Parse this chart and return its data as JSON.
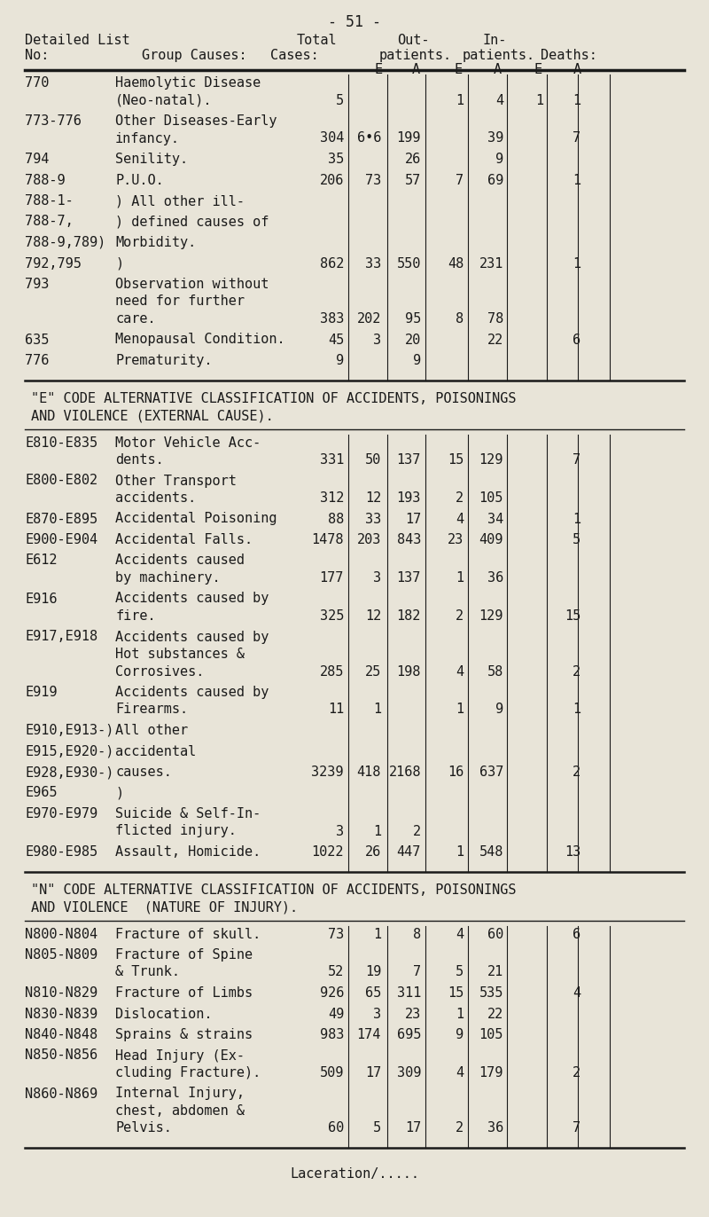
{
  "bg_color": "#e8e4d8",
  "text_color": "#1a1a1a",
  "sections": [
    {
      "type": "data",
      "rows": [
        {
          "code": "770",
          "desc_lines": [
            "Haemolytic Disease",
            "(Neo-natal)."
          ],
          "total": "5",
          "out_e": "",
          "out_a": "",
          "in_e": "1",
          "in_a": "4",
          "d_e": "1",
          "d_a": "1"
        },
        {
          "code": "773-776",
          "desc_lines": [
            "Other Diseases-Early",
            "infancy."
          ],
          "total": "304",
          "out_e": "6•6",
          "out_a": "199",
          "in_e": "",
          "in_a": "39",
          "d_e": "",
          "d_a": "7"
        },
        {
          "code": "794",
          "desc_lines": [
            "Senility."
          ],
          "total": "35",
          "out_e": "",
          "out_a": "26",
          "in_e": "",
          "in_a": "9",
          "d_e": "",
          "d_a": ""
        },
        {
          "code": "788-9",
          "desc_lines": [
            "P.U.O."
          ],
          "total": "206",
          "out_e": "73",
          "out_a": "57",
          "in_e": "7",
          "in_a": "69",
          "d_e": "",
          "d_a": "1"
        },
        {
          "code": "788-1-",
          "desc_lines": [
            ") All other ill-"
          ],
          "total": "",
          "out_e": "",
          "out_a": "",
          "in_e": "",
          "in_a": "",
          "d_e": "",
          "d_a": ""
        },
        {
          "code": "788-7,",
          "desc_lines": [
            ") defined causes of"
          ],
          "total": "",
          "out_e": "",
          "out_a": "",
          "in_e": "",
          "in_a": "",
          "d_e": "",
          "d_a": ""
        },
        {
          "code": "788-9,789)",
          "desc_lines": [
            "Morbidity."
          ],
          "total": "",
          "out_e": "",
          "out_a": "",
          "in_e": "",
          "in_a": "",
          "d_e": "",
          "d_a": ""
        },
        {
          "code": "792,795",
          "desc_lines": [
            ")"
          ],
          "total": "862",
          "out_e": "33",
          "out_a": "550",
          "in_e": "48",
          "in_a": "231",
          "d_e": "",
          "d_a": "1"
        },
        {
          "code": "793",
          "desc_lines": [
            "Observation without",
            "need for further",
            "care."
          ],
          "total": "383",
          "out_e": "202",
          "out_a": "95",
          "in_e": "8",
          "in_a": "78",
          "d_e": "",
          "d_a": ""
        },
        {
          "code": "635",
          "desc_lines": [
            "Menopausal Condition."
          ],
          "total": "45",
          "out_e": "3",
          "out_a": "20",
          "in_e": "",
          "in_a": "22",
          "d_e": "",
          "d_a": "6"
        },
        {
          "code": "776",
          "desc_lines": [
            "Prematurity."
          ],
          "total": "9",
          "out_e": "",
          "out_a": "9",
          "in_e": "",
          "in_a": "",
          "d_e": "",
          "d_a": ""
        }
      ]
    },
    {
      "type": "section_header",
      "lines": [
        "\"E\" CODE ALTERNATIVE CLASSIFICATION OF ACCIDENTS, POISONINGS",
        "AND VIOLENCE (EXTERNAL CAUSE)."
      ]
    },
    {
      "type": "data",
      "rows": [
        {
          "code": "E810-E835",
          "desc_lines": [
            "Motor Vehicle Acc-",
            "dents."
          ],
          "total": "331",
          "out_e": "50",
          "out_a": "137",
          "in_e": "15",
          "in_a": "129",
          "d_e": "",
          "d_a": "7"
        },
        {
          "code": "E800-E802",
          "desc_lines": [
            "Other Transport",
            "accidents."
          ],
          "total": "312",
          "out_e": "12",
          "out_a": "193",
          "in_e": "2",
          "in_a": "105",
          "d_e": "",
          "d_a": ""
        },
        {
          "code": "E870-E895",
          "desc_lines": [
            "Accidental Poisoning"
          ],
          "total": "88",
          "out_e": "33",
          "out_a": "17",
          "in_e": "4",
          "in_a": "34",
          "d_e": "",
          "d_a": "1"
        },
        {
          "code": "E900-E904",
          "desc_lines": [
            "Accidental Falls."
          ],
          "total": "1478",
          "out_e": "203",
          "out_a": "843",
          "in_e": "23",
          "in_a": "409",
          "d_e": "",
          "d_a": "5"
        },
        {
          "code": "E612",
          "desc_lines": [
            "Accidents caused",
            "by machinery."
          ],
          "total": "177",
          "out_e": "3",
          "out_a": "137",
          "in_e": "1",
          "in_a": "36",
          "d_e": "",
          "d_a": ""
        },
        {
          "code": "E916",
          "desc_lines": [
            "Accidents caused by",
            "fire."
          ],
          "total": "325",
          "out_e": "12",
          "out_a": "182",
          "in_e": "2",
          "in_a": "129",
          "d_e": "",
          "d_a": "15"
        },
        {
          "code": "E917,E918",
          "desc_lines": [
            "Accidents caused by",
            "Hot substances &",
            "Corrosives."
          ],
          "total": "285",
          "out_e": "25",
          "out_a": "198",
          "in_e": "4",
          "in_a": "58",
          "d_e": "",
          "d_a": "2"
        },
        {
          "code": "E919",
          "desc_lines": [
            "Accidents caused by",
            "Firearms."
          ],
          "total": "11",
          "out_e": "1",
          "out_a": "",
          "in_e": "1",
          "in_a": "9",
          "d_e": "",
          "d_a": "1"
        },
        {
          "code": "E910,E913-)",
          "desc_lines": [
            "All other"
          ],
          "total": "",
          "out_e": "",
          "out_a": "",
          "in_e": "",
          "in_a": "",
          "d_e": "",
          "d_a": ""
        },
        {
          "code": "E915,E920-)",
          "desc_lines": [
            "accidental"
          ],
          "total": "",
          "out_e": "",
          "out_a": "",
          "in_e": "",
          "in_a": "",
          "d_e": "",
          "d_a": ""
        },
        {
          "code": "E928,E930-)",
          "desc_lines": [
            "causes."
          ],
          "total": "3239",
          "out_e": "418",
          "out_a": "2168",
          "in_e": "16",
          "in_a": "637",
          "d_e": "",
          "d_a": "2"
        },
        {
          "code": "E965",
          "desc_lines": [
            ")"
          ],
          "total": "",
          "out_e": "",
          "out_a": "",
          "in_e": "",
          "in_a": "",
          "d_e": "",
          "d_a": ""
        },
        {
          "code": "E970-E979",
          "desc_lines": [
            "Suicide & Self-In-",
            "flicted injury."
          ],
          "total": "3",
          "out_e": "1",
          "out_a": "2",
          "in_e": "",
          "in_a": "",
          "d_e": "",
          "d_a": ""
        },
        {
          "code": "E980-E985",
          "desc_lines": [
            "Assault, Homicide."
          ],
          "total": "1022",
          "out_e": "26",
          "out_a": "447",
          "in_e": "1",
          "in_a": "548",
          "d_e": "",
          "d_a": "13"
        }
      ]
    },
    {
      "type": "section_header",
      "lines": [
        "\"N\" CODE ALTERNATIVE CLASSIFICATION OF ACCIDENTS, POISONINGS",
        "AND VIOLENCE  (NATURE OF INJURY)."
      ]
    },
    {
      "type": "data",
      "rows": [
        {
          "code": "N800-N804",
          "desc_lines": [
            "Fracture of skull."
          ],
          "total": "73",
          "out_e": "1",
          "out_a": "8",
          "in_e": "4",
          "in_a": "60",
          "d_e": "",
          "d_a": "6"
        },
        {
          "code": "N805-N809",
          "desc_lines": [
            "Fracture of Spine",
            "& Trunk."
          ],
          "total": "52",
          "out_e": "19",
          "out_a": "7",
          "in_e": "5",
          "in_a": "21",
          "d_e": "",
          "d_a": ""
        },
        {
          "code": "N810-N829",
          "desc_lines": [
            "Fracture of Limbs"
          ],
          "total": "926",
          "out_e": "65",
          "out_a": "311",
          "in_e": "15",
          "in_a": "535",
          "d_e": "",
          "d_a": "4"
        },
        {
          "code": "N830-N839",
          "desc_lines": [
            "Dislocation."
          ],
          "total": "49",
          "out_e": "3",
          "out_a": "23",
          "in_e": "1",
          "in_a": "22",
          "d_e": "",
          "d_a": ""
        },
        {
          "code": "N840-N848",
          "desc_lines": [
            "Sprains & strains"
          ],
          "total": "983",
          "out_e": "174",
          "out_a": "695",
          "in_e": "9",
          "in_a": "105",
          "d_e": "",
          "d_a": ""
        },
        {
          "code": "N850-N856",
          "desc_lines": [
            "Head Injury (Ex-",
            "cluding Fracture)."
          ],
          "total": "509",
          "out_e": "17",
          "out_a": "309",
          "in_e": "4",
          "in_a": "179",
          "d_e": "",
          "d_a": "2"
        },
        {
          "code": "N860-N869",
          "desc_lines": [
            "Internal Injury,",
            "chest, abdomen &",
            "Pelvis."
          ],
          "total": "60",
          "out_e": "5",
          "out_a": "17",
          "in_e": "2",
          "in_a": "36",
          "d_e": "",
          "d_a": "7"
        }
      ]
    },
    {
      "type": "footer",
      "text": "Laceration/....."
    }
  ]
}
